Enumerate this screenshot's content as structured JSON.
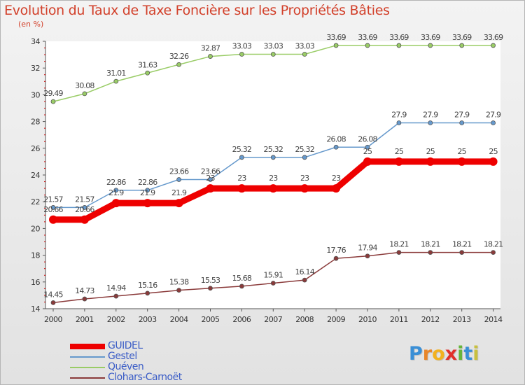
{
  "title": "Evolution du Taux de Taxe Foncière sur les Propriétés Bâties",
  "unit_label": "(en %)",
  "logo": {
    "letters": [
      "P",
      "r",
      "o",
      "x",
      "i",
      "t",
      "i"
    ],
    "colors": [
      "#3a8fd6",
      "#e8862a",
      "#f2b21f",
      "#e0302a",
      "#67b53a",
      "#3a8fd6",
      "#c8c040"
    ]
  },
  "chart_data": {
    "type": "line",
    "x": [
      2000,
      2001,
      2002,
      2003,
      2004,
      2005,
      2006,
      2007,
      2008,
      2009,
      2010,
      2011,
      2012,
      2013,
      2014
    ],
    "ylim": [
      14,
      34
    ],
    "yticks": [
      14,
      16,
      18,
      20,
      22,
      24,
      26,
      28,
      30,
      32,
      34
    ],
    "grid": false,
    "legend_position": "bottom-left",
    "series": [
      {
        "name": "GUIDEL",
        "color": "#ee0000",
        "highlight": true,
        "values": [
          20.66,
          20.66,
          21.9,
          21.9,
          21.9,
          23,
          23,
          23,
          23,
          23,
          25,
          25,
          25,
          25,
          25
        ],
        "labels": [
          "20.66",
          "20.66",
          "21.9",
          "21.9",
          "21.9",
          "23",
          "23",
          "23",
          "23",
          "23",
          "25",
          "25",
          "25",
          "25",
          "25"
        ]
      },
      {
        "name": "Gestel",
        "color": "#6699cc",
        "values": [
          21.57,
          21.57,
          22.86,
          22.86,
          23.66,
          23.66,
          25.32,
          25.32,
          25.32,
          26.08,
          26.08,
          27.9,
          27.9,
          27.9,
          27.9
        ],
        "labels": [
          "21.57",
          "21.57",
          "22.86",
          "22.86",
          "23.66",
          "23.66",
          "25.32",
          "25.32",
          "25.32",
          "26.08",
          "26.08",
          "27.9",
          "27.9",
          "27.9",
          "27.9"
        ]
      },
      {
        "name": "Quéven",
        "color": "#99cc66",
        "values": [
          29.49,
          30.08,
          31.01,
          31.63,
          32.26,
          32.87,
          33.03,
          33.03,
          33.03,
          33.69,
          33.69,
          33.69,
          33.69,
          33.69,
          33.69
        ],
        "labels": [
          "29.49",
          "30.08",
          "31.01",
          "31.63",
          "32.26",
          "32.87",
          "33.03",
          "33.03",
          "33.03",
          "33.69",
          "33.69",
          "33.69",
          "33.69",
          "33.69",
          "33.69"
        ]
      },
      {
        "name": "Clohars-Carnoët",
        "color": "#8a3a3a",
        "values": [
          14.45,
          14.73,
          14.94,
          15.16,
          15.38,
          15.53,
          15.68,
          15.91,
          16.14,
          17.76,
          17.94,
          18.21,
          18.21,
          18.21,
          18.21
        ],
        "labels": [
          "14.45",
          "14.73",
          "14.94",
          "15.16",
          "15.38",
          "15.53",
          "15.68",
          "15.91",
          "16.14",
          "17.76",
          "17.94",
          "18.21",
          "18.21",
          "18.21",
          "18.21"
        ]
      }
    ]
  }
}
